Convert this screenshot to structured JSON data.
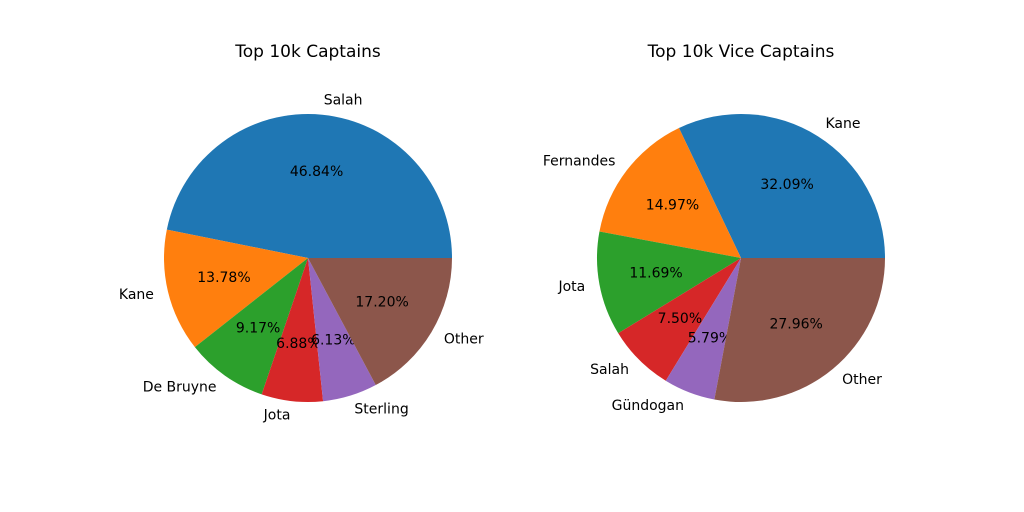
{
  "chart_data": [
    {
      "type": "pie",
      "title": "Top 10k Captains",
      "slices": [
        {
          "label": "Salah",
          "value": 46.84,
          "pct_label": "46.84%",
          "color": "#1f77b4"
        },
        {
          "label": "Kane",
          "value": 13.78,
          "pct_label": "13.78%",
          "color": "#ff7f0e"
        },
        {
          "label": "De Bruyne",
          "value": 9.17,
          "pct_label": "9.17%",
          "color": "#2ca02c"
        },
        {
          "label": "Jota",
          "value": 6.88,
          "pct_label": "6.88%",
          "color": "#d62728"
        },
        {
          "label": "Sterling",
          "value": 6.13,
          "pct_label": "6.13%",
          "color": "#9467bd"
        },
        {
          "label": "Other",
          "value": 17.2,
          "pct_label": "17.20%",
          "color": "#8c564b"
        }
      ]
    },
    {
      "type": "pie",
      "title": "Top 10k Vice Captains",
      "slices": [
        {
          "label": "Kane",
          "value": 32.09,
          "pct_label": "32.09%",
          "color": "#1f77b4"
        },
        {
          "label": "Fernandes",
          "value": 14.97,
          "pct_label": "14.97%",
          "color": "#ff7f0e"
        },
        {
          "label": "Jota",
          "value": 11.69,
          "pct_label": "11.69%",
          "color": "#2ca02c"
        },
        {
          "label": "Salah",
          "value": 7.5,
          "pct_label": "7.50%",
          "color": "#d62728"
        },
        {
          "label": "Gündogan",
          "value": 5.79,
          "pct_label": "5.79%",
          "color": "#9467bd"
        },
        {
          "label": "Other",
          "value": 27.96,
          "pct_label": "27.96%",
          "color": "#8c564b"
        }
      ]
    }
  ]
}
